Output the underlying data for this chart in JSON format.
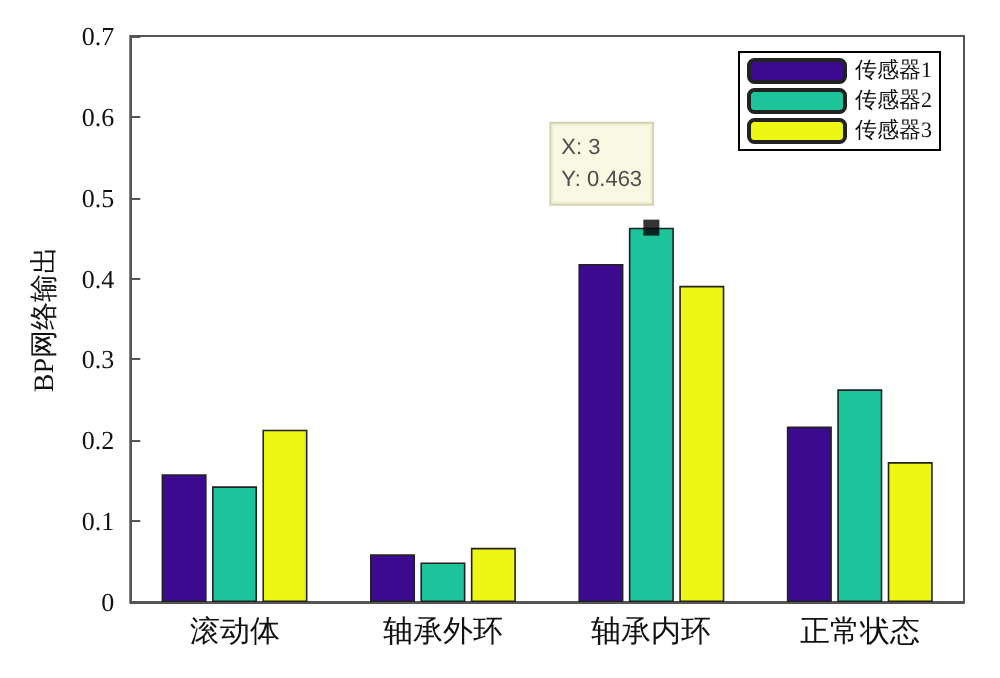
{
  "chart_data": {
    "type": "bar",
    "ylabel": "BP网络输出",
    "categories": [
      "滚动体",
      "轴承外环",
      "轴承内环",
      "正常状态"
    ],
    "series": [
      {
        "name": "传感器1",
        "color": "#3b0a8f",
        "values": [
          0.158,
          0.059,
          0.418,
          0.217
        ]
      },
      {
        "name": "传感器2",
        "color": "#1cc39b",
        "values": [
          0.143,
          0.049,
          0.463,
          0.263
        ]
      },
      {
        "name": "传感器3",
        "color": "#eef714",
        "values": [
          0.213,
          0.067,
          0.391,
          0.173
        ]
      },
      {
        "type": "scatter",
        "color": "#000000",
        "marker": "square",
        "x": [
          "轴承内环"
        ],
        "values": [
          0.463
        ]
      }
    ],
    "ylim": [
      0,
      0.7
    ],
    "yticks": [
      0,
      0.1,
      0.2,
      0.3,
      0.4,
      0.5,
      0.6,
      0.7
    ],
    "grid": false,
    "legend": "top right",
    "annotations": [
      {
        "text": "X: 3\nY: 0.463",
        "x": "轴承内环",
        "y": 0.463
      }
    ]
  }
}
